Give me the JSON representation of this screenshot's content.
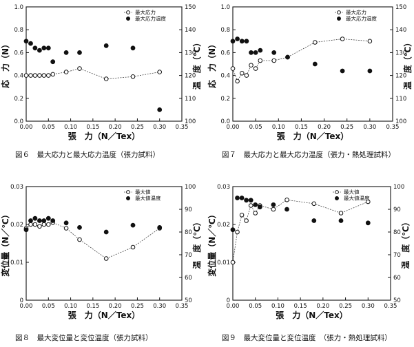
{
  "chart_data": [
    {
      "type": "scatter",
      "caption": "図６　最大応力と最大応力温度（張力試料）",
      "xlabel": "張　力（N／Tex）",
      "ylabel_left": "応　力（N）",
      "ylabel_right": "温　度（℃）",
      "xlim": [
        0,
        0.35
      ],
      "xticks": [
        "0.00",
        "0.05",
        "0.10",
        "0.15",
        "0.20",
        "0.25",
        "0.30",
        "0.35"
      ],
      "ylim_left": [
        0,
        1.0
      ],
      "yticks_left": [
        "0.0",
        "0.2",
        "0.4",
        "0.6",
        "0.8",
        "1.0"
      ],
      "ylim_right": [
        100,
        150
      ],
      "yticks_right": [
        "100",
        "110",
        "120",
        "130",
        "140",
        "150"
      ],
      "legend": [
        "最大応力",
        "最大応力温度"
      ],
      "series": [
        {
          "name": "最大応力",
          "marker": "open",
          "axis": "left",
          "connected": true,
          "x": [
            0.0,
            0.01,
            0.02,
            0.03,
            0.04,
            0.05,
            0.06,
            0.09,
            0.12,
            0.18,
            0.24,
            0.3
          ],
          "y": [
            0.4,
            0.4,
            0.4,
            0.4,
            0.4,
            0.4,
            0.41,
            0.43,
            0.46,
            0.37,
            0.39,
            0.43
          ]
        },
        {
          "name": "最大応力温度",
          "marker": "filled",
          "axis": "right",
          "connected": false,
          "x": [
            0.0,
            0.01,
            0.02,
            0.03,
            0.04,
            0.05,
            0.06,
            0.09,
            0.12,
            0.18,
            0.24,
            0.3
          ],
          "y": [
            135,
            134,
            132,
            131,
            132,
            132,
            126,
            130,
            130,
            133,
            132,
            105
          ]
        }
      ]
    },
    {
      "type": "scatter",
      "caption": "図７　最大応力と最大応力温度（張力・熱処理試料）",
      "xlabel": "張　力（N／Tex）",
      "ylabel_left": "応　力（N）",
      "ylabel_right": "温　度（℃）",
      "xlim": [
        0,
        0.35
      ],
      "xticks": [
        "0.00",
        "0.05",
        "0.10",
        "0.15",
        "0.20",
        "0.25",
        "0.30",
        "0.35"
      ],
      "ylim_left": [
        0,
        1.0
      ],
      "yticks_left": [
        "0.0",
        "0.2",
        "0.4",
        "0.6",
        "0.8",
        "1.0"
      ],
      "ylim_right": [
        100,
        150
      ],
      "yticks_right": [
        "100",
        "110",
        "120",
        "130",
        "140",
        "150"
      ],
      "legend": [
        "最大応力",
        "最大応力温度"
      ],
      "series": [
        {
          "name": "最大応力",
          "marker": "open",
          "axis": "left",
          "connected": true,
          "x": [
            0.0,
            0.01,
            0.02,
            0.03,
            0.04,
            0.05,
            0.06,
            0.09,
            0.12,
            0.18,
            0.24,
            0.3
          ],
          "y": [
            0.46,
            0.35,
            0.42,
            0.4,
            0.49,
            0.46,
            0.53,
            0.53,
            0.56,
            0.69,
            0.72,
            0.7
          ]
        },
        {
          "name": "最大応力温度",
          "marker": "filled",
          "axis": "right",
          "connected": false,
          "x": [
            0.0,
            0.01,
            0.02,
            0.03,
            0.04,
            0.05,
            0.06,
            0.09,
            0.12,
            0.18,
            0.24,
            0.3
          ],
          "y": [
            135,
            136,
            135,
            135,
            130,
            130,
            131,
            130,
            128,
            125,
            122,
            122
          ]
        }
      ]
    },
    {
      "type": "scatter",
      "caption": "図８　最大変位量と変位温度（張力試料）",
      "xlabel": "張　力（N／Tex）",
      "ylabel_left": "変位量（N／℃）",
      "ylabel_right": "温　度（℃）",
      "xlim": [
        0,
        0.35
      ],
      "xticks": [
        "0.00",
        "0.05",
        "0.10",
        "0.15",
        "0.20",
        "0.25",
        "0.30",
        "0.35"
      ],
      "ylim_left": [
        0,
        0.03
      ],
      "yticks_left": [
        "0",
        "0.01",
        "0.02",
        "0.03"
      ],
      "ylim_right": [
        50,
        100
      ],
      "yticks_right": [
        "50",
        "60",
        "70",
        "80",
        "90",
        "100"
      ],
      "legend": [
        "最大値",
        "最大値温度"
      ],
      "series": [
        {
          "name": "最大値",
          "marker": "open",
          "axis": "left",
          "connected": true,
          "x": [
            0.0,
            0.01,
            0.02,
            0.03,
            0.04,
            0.05,
            0.06,
            0.09,
            0.12,
            0.18,
            0.24,
            0.3
          ],
          "y": [
            0.019,
            0.02,
            0.02,
            0.0195,
            0.02,
            0.02,
            0.0205,
            0.019,
            0.016,
            0.011,
            0.014,
            0.019
          ]
        },
        {
          "name": "最大値温度",
          "marker": "filled",
          "axis": "right",
          "connected": false,
          "x": [
            0.0,
            0.01,
            0.02,
            0.03,
            0.04,
            0.05,
            0.06,
            0.09,
            0.12,
            0.18,
            0.24,
            0.3
          ],
          "y": [
            81,
            85,
            86,
            85,
            85,
            86,
            85,
            84,
            82,
            80,
            83,
            82
          ]
        }
      ]
    },
    {
      "type": "scatter",
      "caption": "図９　最大変位量と変位温度　（張力・熱処理試料）",
      "xlabel": "張　力（N／Tex）",
      "ylabel_left": "変位量（N／℃）",
      "ylabel_right": "温　度（℃）",
      "xlim": [
        0,
        0.35
      ],
      "xticks": [
        "0.00",
        "0.05",
        "0.10",
        "0.15",
        "0.20",
        "0.25",
        "0.30",
        "0.35"
      ],
      "ylim_left": [
        0,
        0.03
      ],
      "yticks_left": [
        "0",
        "0.01",
        "0.02",
        "0.03"
      ],
      "ylim_right": [
        50,
        100
      ],
      "yticks_right": [
        "50",
        "60",
        "70",
        "80",
        "90",
        "100"
      ],
      "legend": [
        "最大値",
        "最大値温度"
      ],
      "series": [
        {
          "name": "最大値",
          "marker": "open",
          "axis": "left",
          "connected": true,
          "x": [
            0.0,
            0.01,
            0.02,
            0.03,
            0.04,
            0.05,
            0.06,
            0.09,
            0.12,
            0.18,
            0.24,
            0.3
          ],
          "y": [
            0.01,
            0.018,
            0.0225,
            0.021,
            0.025,
            0.023,
            0.025,
            0.024,
            0.0265,
            0.0255,
            0.023,
            0.026
          ]
        },
        {
          "name": "最大値温度",
          "marker": "filled",
          "axis": "right",
          "connected": false,
          "x": [
            0.0,
            0.01,
            0.02,
            0.03,
            0.04,
            0.05,
            0.06,
            0.09,
            0.12,
            0.18,
            0.24,
            0.3
          ],
          "y": [
            81,
            95,
            95,
            94,
            94,
            92,
            91,
            92,
            90,
            85,
            85,
            84
          ]
        }
      ]
    }
  ]
}
